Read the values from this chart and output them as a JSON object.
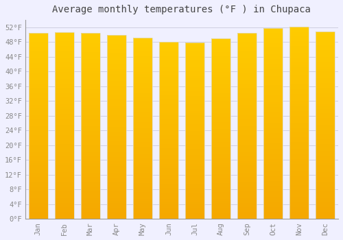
{
  "title": "Average monthly temperatures (°F ) in Chupaca",
  "months": [
    "Jan",
    "Feb",
    "Mar",
    "Apr",
    "May",
    "Jun",
    "Jul",
    "Aug",
    "Sep",
    "Oct",
    "Nov",
    "Dec"
  ],
  "values": [
    50.5,
    50.7,
    50.4,
    50.0,
    49.1,
    48.0,
    47.8,
    49.0,
    50.5,
    51.8,
    52.2,
    50.9
  ],
  "bar_color_top": "#FFCC00",
  "bar_color_bottom": "#F5A800",
  "background_color": "#F0F0FF",
  "plot_bg_color": "#F0F0FF",
  "ylim": [
    0,
    54
  ],
  "yticks": [
    0,
    4,
    8,
    12,
    16,
    20,
    24,
    28,
    32,
    36,
    40,
    44,
    48,
    52
  ],
  "ytick_labels": [
    "0°F",
    "4°F",
    "8°F",
    "12°F",
    "16°F",
    "20°F",
    "24°F",
    "28°F",
    "32°F",
    "36°F",
    "40°F",
    "44°F",
    "48°F",
    "52°F"
  ],
  "title_fontsize": 10,
  "tick_fontsize": 7.5,
  "font_family": "monospace",
  "grid_color": "#D0D0E0",
  "bar_edge_color": "#DDDDCC"
}
